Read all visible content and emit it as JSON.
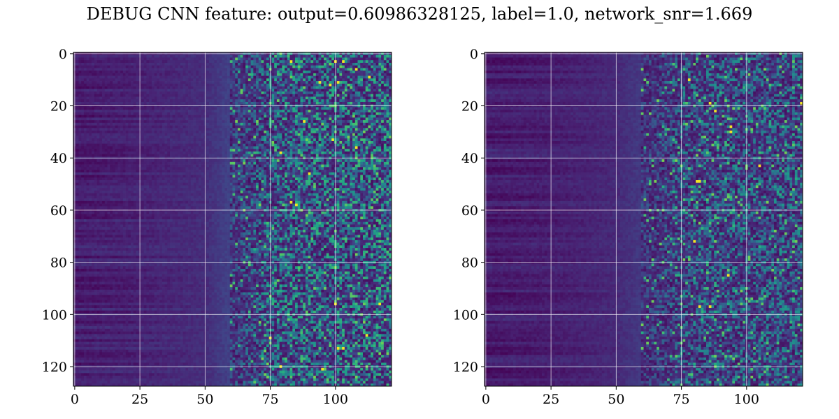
{
  "title": "DEBUG CNN feature: output=0.60986328125, label=1.0, network_snr=1.669",
  "chart_data": [
    {
      "type": "heatmap",
      "colormap": "viridis",
      "grid": true,
      "grid_color": "#ffffff",
      "rows": 128,
      "cols": 122,
      "xlim": [
        -0.5,
        121.5
      ],
      "ylim": [
        127.5,
        -0.5
      ],
      "xticks": [
        0,
        25,
        50,
        75,
        100
      ],
      "yticks": [
        0,
        20,
        40,
        60,
        80,
        100,
        120
      ],
      "xticklabels": [
        "0",
        "25",
        "50",
        "75",
        "100"
      ],
      "yticklabels": [
        "0",
        "20",
        "40",
        "60",
        "80",
        "100",
        "120"
      ],
      "value_range": [
        0,
        1
      ],
      "column_profile": {
        "description_cols": [
          0,
          25,
          50,
          60,
          70,
          75,
          100,
          121
        ],
        "mean_intensity": [
          0.08,
          0.1,
          0.13,
          0.2,
          0.28,
          0.35,
          0.38,
          0.38
        ]
      },
      "bright_cells": [
        [
          3,
          83
        ],
        [
          3,
          100
        ],
        [
          3,
          103
        ],
        [
          6,
          108
        ],
        [
          9,
          113
        ],
        [
          11,
          94
        ],
        [
          11,
          101
        ],
        [
          12,
          98
        ],
        [
          26,
          88
        ],
        [
          33,
          99
        ],
        [
          36,
          108
        ],
        [
          38,
          79
        ],
        [
          46,
          90
        ],
        [
          57,
          83
        ],
        [
          58,
          85
        ],
        [
          96,
          100
        ],
        [
          96,
          117
        ],
        [
          108,
          112
        ],
        [
          113,
          101
        ],
        [
          113,
          103
        ],
        [
          109,
          75
        ],
        [
          120,
          79
        ],
        [
          121,
          95
        ]
      ]
    },
    {
      "type": "heatmap",
      "colormap": "viridis",
      "grid": true,
      "grid_color": "#ffffff",
      "rows": 128,
      "cols": 122,
      "xlim": [
        -0.5,
        121.5
      ],
      "ylim": [
        127.5,
        -0.5
      ],
      "xticks": [
        0,
        25,
        50,
        75,
        100
      ],
      "yticks": [
        0,
        20,
        40,
        60,
        80,
        100,
        120
      ],
      "xticklabels": [
        "0",
        "25",
        "50",
        "75",
        "100"
      ],
      "yticklabels": [
        "0",
        "20",
        "40",
        "60",
        "80",
        "100",
        "120"
      ],
      "value_range": [
        0,
        1
      ],
      "column_profile": {
        "description_cols": [
          0,
          25,
          50,
          60,
          70,
          75,
          100,
          121
        ],
        "mean_intensity": [
          0.08,
          0.09,
          0.12,
          0.17,
          0.23,
          0.28,
          0.3,
          0.3
        ]
      },
      "bright_cells": [
        [
          10,
          78
        ],
        [
          19,
          86
        ],
        [
          22,
          88
        ],
        [
          28,
          94
        ],
        [
          30,
          94
        ],
        [
          49,
          81
        ],
        [
          49,
          82
        ],
        [
          72,
          80
        ],
        [
          85,
          93
        ],
        [
          97,
          82
        ],
        [
          97,
          86
        ],
        [
          19,
          121
        ],
        [
          43,
          105
        ]
      ]
    }
  ]
}
